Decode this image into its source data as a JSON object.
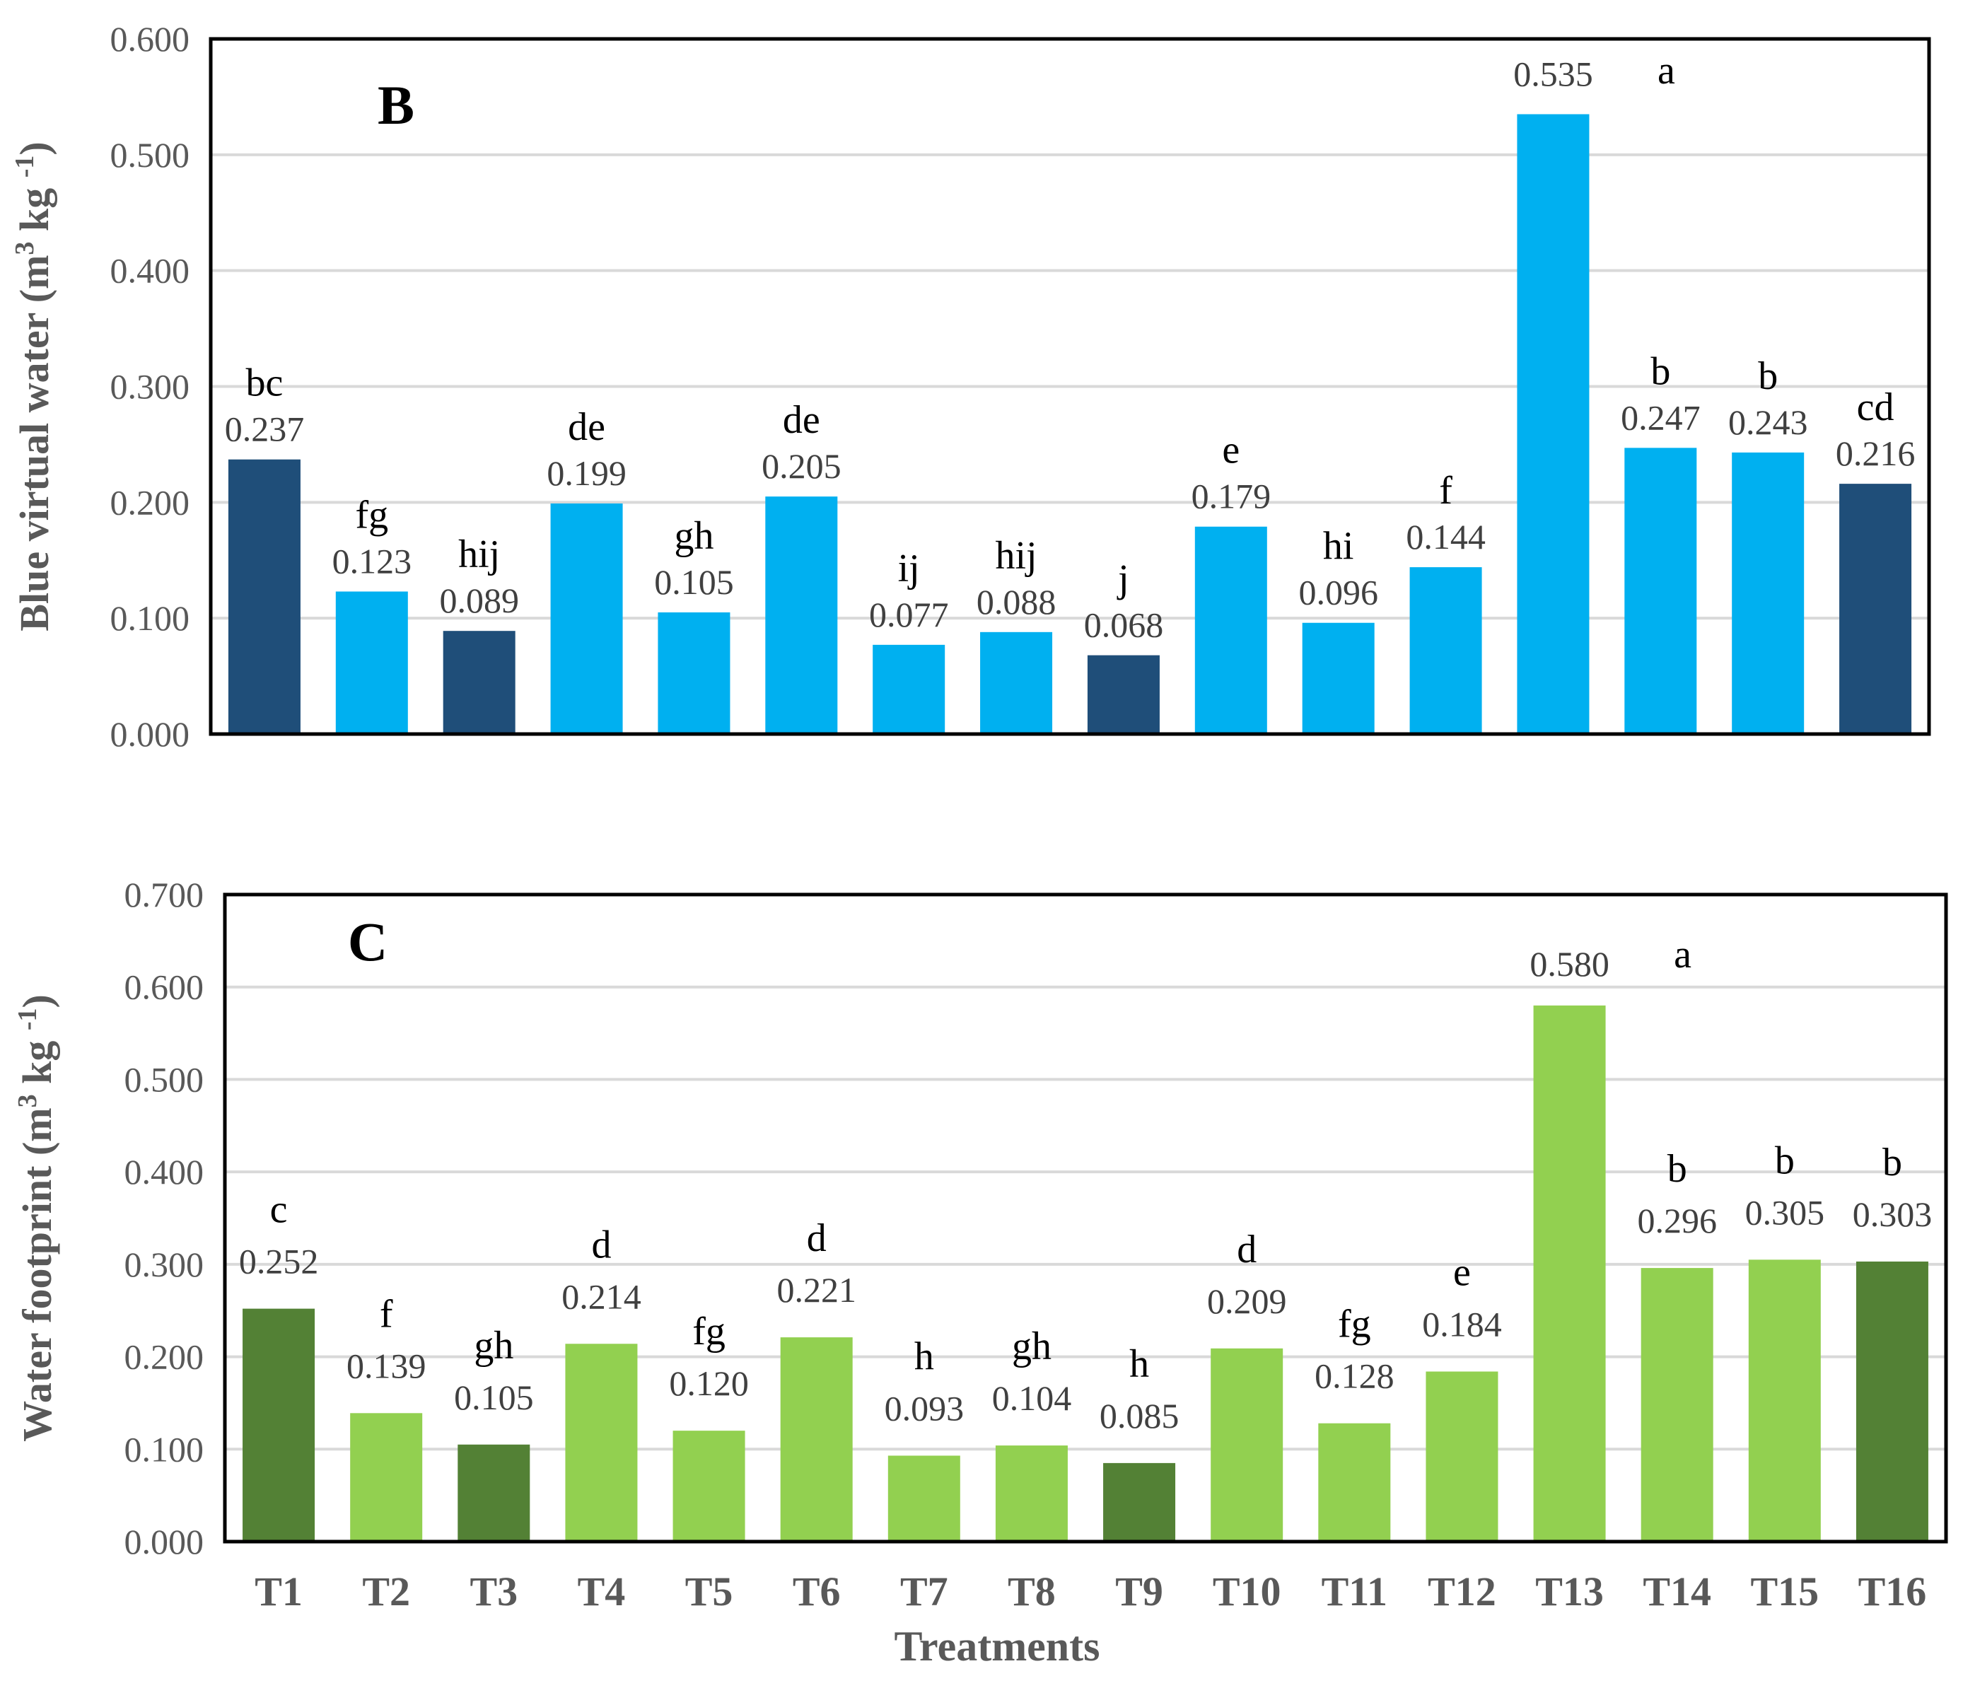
{
  "chart_data": [
    {
      "type": "bar",
      "panel_label": "B",
      "ylabel": {
        "main": "Blue virtual water (m",
        "sup1": "3",
        "mid": " kg ",
        "sup2": "-1",
        "end": ")"
      },
      "ylim": [
        0,
        0.6
      ],
      "yticks": [
        "0.000",
        "0.100",
        "0.200",
        "0.300",
        "0.400",
        "0.500",
        "0.600"
      ],
      "categories": [
        "T1",
        "T2",
        "T3",
        "T4",
        "T5",
        "T6",
        "T7",
        "T8",
        "T9",
        "T10",
        "T11",
        "T12",
        "T13",
        "T14",
        "T15",
        "T16"
      ],
      "values": [
        0.237,
        0.123,
        0.089,
        0.199,
        0.105,
        0.205,
        0.077,
        0.088,
        0.068,
        0.179,
        0.096,
        0.144,
        0.535,
        0.247,
        0.243,
        0.216
      ],
      "value_labels": [
        "0.237",
        "0.123",
        "0.089",
        "0.199",
        "0.105",
        "0.205",
        "0.077",
        "0.088",
        "0.068",
        "0.179",
        "0.096",
        "0.144",
        "0.535",
        "0.247",
        "0.243",
        "0.216"
      ],
      "letters": [
        "bc",
        "fg",
        "hij",
        "de",
        "gh",
        "de",
        "ij",
        "hij",
        "j",
        "e",
        "hi",
        "f",
        "a",
        "b",
        "b",
        "cd"
      ],
      "dark_bars": [
        true,
        false,
        true,
        false,
        false,
        false,
        false,
        false,
        true,
        false,
        false,
        false,
        false,
        false,
        false,
        true
      ],
      "colors": {
        "light": "#00B0F0",
        "dark": "#1F4E79",
        "grid": "#D9D9D9"
      },
      "grid": true
    },
    {
      "type": "bar",
      "panel_label": "C",
      "ylabel": {
        "main": "Water footprint (m",
        "sup1": "3",
        "mid": " kg ",
        "sup2": "-1",
        "end": ")"
      },
      "ylim": [
        0,
        0.7
      ],
      "yticks": [
        "0.000",
        "0.100",
        "0.200",
        "0.300",
        "0.400",
        "0.500",
        "0.600",
        "0.700"
      ],
      "categories": [
        "T1",
        "T2",
        "T3",
        "T4",
        "T5",
        "T6",
        "T7",
        "T8",
        "T9",
        "T10",
        "T11",
        "T12",
        "T13",
        "T14",
        "T15",
        "T16"
      ],
      "values": [
        0.252,
        0.139,
        0.105,
        0.214,
        0.12,
        0.221,
        0.093,
        0.104,
        0.085,
        0.209,
        0.128,
        0.184,
        0.58,
        0.296,
        0.305,
        0.303
      ],
      "value_labels": [
        "0.252",
        "0.139",
        "0.105",
        "0.214",
        "0.120",
        "0.221",
        "0.093",
        "0.104",
        "0.085",
        "0.209",
        "0.128",
        "0.184",
        "0.580",
        "0.296",
        "0.305",
        "0.303"
      ],
      "letters": [
        "c",
        "f",
        "gh",
        "d",
        "fg",
        "d",
        "h",
        "gh",
        "h",
        "d",
        "fg",
        "e",
        "a",
        "b",
        "b",
        "b"
      ],
      "dark_bars": [
        true,
        false,
        true,
        false,
        false,
        false,
        false,
        false,
        true,
        false,
        false,
        false,
        false,
        false,
        false,
        true
      ],
      "colors": {
        "light": "#92D050",
        "dark": "#538135",
        "grid": "#D9D9D9"
      },
      "grid": true,
      "xlabel": "Treatments"
    }
  ]
}
